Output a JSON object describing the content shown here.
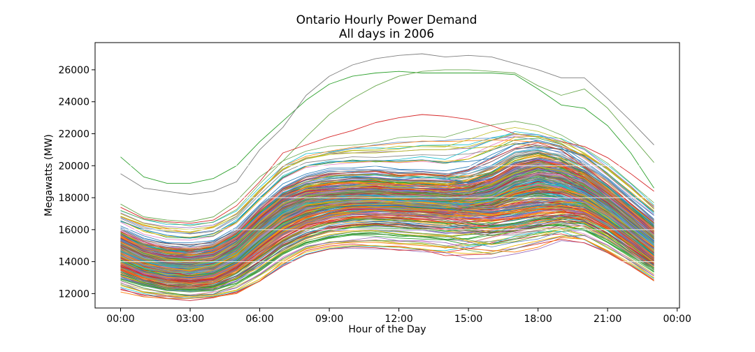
{
  "chart_data": {
    "type": "line",
    "title": "Ontario Hourly Power Demand",
    "subtitle": "All days in 2006",
    "xlabel": "Hour of the Day",
    "ylabel": "Megawatts (MW)",
    "x_ticks": [
      "00:00",
      "03:00",
      "06:00",
      "09:00",
      "12:00",
      "15:00",
      "18:00",
      "21:00",
      "00:00"
    ],
    "y_ticks": [
      "12000",
      "14000",
      "16000",
      "18000",
      "20000",
      "22000",
      "24000",
      "26000"
    ],
    "xlim": [
      -1.1,
      24.1
    ],
    "ylim": [
      11100,
      27700
    ],
    "grid": false,
    "legend": "none",
    "hours": [
      0,
      1,
      2,
      3,
      4,
      5,
      6,
      7,
      8,
      9,
      10,
      11,
      12,
      13,
      14,
      15,
      16,
      17,
      18,
      19,
      20,
      21,
      22,
      23
    ],
    "series_count": 365,
    "palette": [
      "#1f77b4",
      "#ff7f0e",
      "#2ca02c",
      "#d62728",
      "#9467bd",
      "#8c564b",
      "#e377c2",
      "#7f7f7f",
      "#bcbd22",
      "#17becf",
      "#f0b400",
      "#5b84c4",
      "#6aa84f",
      "#a0a0a0"
    ],
    "representative_series": [
      {
        "values": [
          20550,
          19300,
          18900,
          18900,
          19200,
          20000,
          21500,
          22800,
          24100,
          25100,
          25600,
          25800,
          25900,
          25800,
          25800,
          25800,
          25800,
          25700,
          24800,
          23800,
          23600,
          22500,
          20800,
          18600
        ]
      },
      {
        "values": [
          19500,
          18600,
          18400,
          18200,
          18400,
          19000,
          21000,
          22400,
          24400,
          25600,
          26300,
          26700,
          26900,
          27000,
          26800,
          26900,
          26800,
          26400,
          26000,
          25500,
          25500,
          24200,
          22800,
          21300
        ]
      },
      {
        "values": [
          17600,
          16800,
          16600,
          16500,
          16800,
          17800,
          19300,
          20300,
          21800,
          23200,
          24200,
          25000,
          25600,
          25900,
          26000,
          26000,
          25900,
          25800,
          25000,
          24400,
          24800,
          23600,
          21900,
          20200
        ]
      },
      {
        "values": [
          17400,
          16700,
          16500,
          16400,
          16600,
          17500,
          19000,
          20800,
          21300,
          21800,
          22200,
          22700,
          23000,
          23200,
          23100,
          22900,
          22500,
          22000,
          21800,
          21500,
          21200,
          20500,
          19500,
          18400
        ]
      },
      {
        "values": [
          17000,
          16400,
          16100,
          16000,
          16200,
          17000,
          18500,
          19800,
          20500,
          20700,
          20800,
          20800,
          20900,
          21000,
          21000,
          21200,
          21600,
          22000,
          21800,
          21500,
          20800,
          19800,
          18600,
          17300
        ]
      },
      {
        "values": [
          16000,
          15300,
          15000,
          14900,
          15100,
          15900,
          17300,
          18600,
          19300,
          19600,
          19700,
          19700,
          19600,
          19600,
          19500,
          19500,
          19900,
          20600,
          20900,
          20700,
          20100,
          19000,
          17800,
          16600
        ]
      },
      {
        "values": [
          15300,
          14600,
          14300,
          14200,
          14400,
          15200,
          16600,
          17700,
          18200,
          18400,
          18500,
          18500,
          18400,
          18400,
          18300,
          18300,
          18600,
          19400,
          19800,
          19600,
          19100,
          18100,
          16900,
          15700
        ]
      },
      {
        "values": [
          14700,
          14000,
          13700,
          13600,
          13800,
          14500,
          15900,
          17000,
          17600,
          17800,
          17900,
          17900,
          17800,
          17800,
          17700,
          17600,
          17800,
          18500,
          18900,
          18700,
          18200,
          17300,
          16100,
          15000
        ]
      },
      {
        "values": [
          14000,
          13400,
          13100,
          13000,
          13200,
          13900,
          15100,
          16200,
          16900,
          17300,
          17500,
          17500,
          17500,
          17400,
          17300,
          17200,
          17100,
          17300,
          17500,
          17600,
          17400,
          16600,
          15500,
          14400
        ]
      },
      {
        "values": [
          13300,
          12800,
          12500,
          12400,
          12500,
          13100,
          14000,
          15000,
          15700,
          16100,
          16300,
          16400,
          16300,
          16200,
          16100,
          15900,
          15800,
          15900,
          16200,
          16500,
          16500,
          15800,
          14800,
          13800
        ]
      },
      {
        "values": [
          12500,
          12100,
          11900,
          11800,
          11900,
          12200,
          12900,
          13900,
          14600,
          14900,
          15000,
          15000,
          14900,
          14800,
          14600,
          14500,
          14600,
          15000,
          15300,
          15600,
          15400,
          14700,
          13900,
          13000
        ]
      },
      {
        "values": [
          12100,
          11800,
          11700,
          11700,
          11800,
          12000,
          12800,
          14000,
          14800,
          15100,
          15200,
          15200,
          15100,
          15000,
          14900,
          14800,
          14700,
          14600,
          14900,
          15500,
          15400,
          14600,
          13800,
          12800
        ]
      }
    ]
  }
}
